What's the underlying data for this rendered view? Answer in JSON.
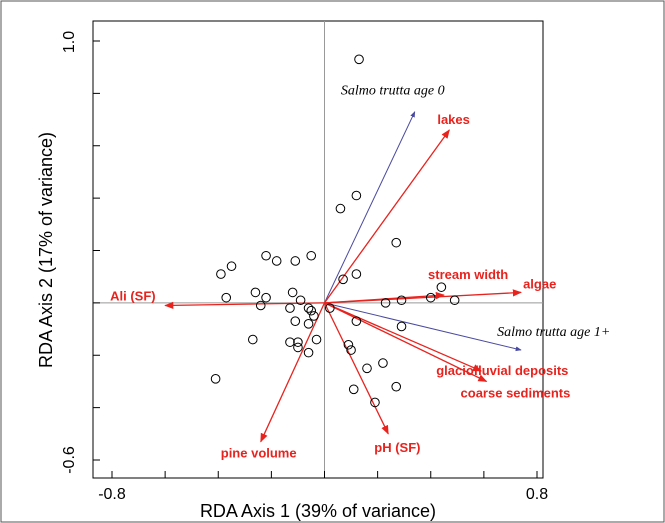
{
  "chart_data": {
    "type": "scatter",
    "title": "",
    "xlabel": "RDA Axis 1 (39% of variance)",
    "ylabel": "RDA Axis 2 (17% of variance)",
    "xlim": [
      -0.8,
      0.8
    ],
    "ylim": [
      -0.6,
      1.0
    ],
    "x_tick_labels": [
      "-0.8",
      "0.8"
    ],
    "y_tick_labels": [
      "1.0",
      "-0.6"
    ],
    "grid": false,
    "zero_lines": true,
    "colors": {
      "environmental_arrows": "#e8231e",
      "species_arrows": "#4a4aa0",
      "points": "#000000"
    },
    "points": [
      {
        "x": 0.13,
        "y": 0.93
      },
      {
        "x": -0.39,
        "y": 0.11
      },
      {
        "x": -0.35,
        "y": 0.14
      },
      {
        "x": -0.22,
        "y": 0.18
      },
      {
        "x": -0.18,
        "y": 0.16
      },
      {
        "x": -0.11,
        "y": 0.16
      },
      {
        "x": -0.05,
        "y": 0.18
      },
      {
        "x": 0.06,
        "y": 0.36
      },
      {
        "x": 0.12,
        "y": 0.41
      },
      {
        "x": 0.27,
        "y": 0.23
      },
      {
        "x": 0.12,
        "y": 0.11
      },
      {
        "x": 0.07,
        "y": 0.09
      },
      {
        "x": -0.26,
        "y": 0.04
      },
      {
        "x": -0.37,
        "y": 0.02
      },
      {
        "x": -0.22,
        "y": 0.02
      },
      {
        "x": -0.12,
        "y": 0.04
      },
      {
        "x": -0.09,
        "y": 0.01
      },
      {
        "x": -0.13,
        "y": -0.02
      },
      {
        "x": -0.24,
        "y": -0.01
      },
      {
        "x": -0.06,
        "y": -0.02
      },
      {
        "x": -0.11,
        "y": -0.07
      },
      {
        "x": -0.06,
        "y": -0.08
      },
      {
        "x": -0.04,
        "y": -0.05
      },
      {
        "x": -0.05,
        "y": -0.03
      },
      {
        "x": 0.02,
        "y": -0.02
      },
      {
        "x": 0.12,
        "y": -0.07
      },
      {
        "x": 0.23,
        "y": 0.0
      },
      {
        "x": 0.29,
        "y": 0.01
      },
      {
        "x": 0.4,
        "y": 0.02
      },
      {
        "x": 0.44,
        "y": 0.06
      },
      {
        "x": 0.49,
        "y": 0.01
      },
      {
        "x": 0.29,
        "y": -0.09
      },
      {
        "x": -0.27,
        "y": -0.14
      },
      {
        "x": -0.13,
        "y": -0.15
      },
      {
        "x": -0.1,
        "y": -0.17
      },
      {
        "x": -0.03,
        "y": -0.14
      },
      {
        "x": -0.06,
        "y": -0.19
      },
      {
        "x": -0.1,
        "y": -0.15
      },
      {
        "x": 0.09,
        "y": -0.16
      },
      {
        "x": 0.1,
        "y": -0.18
      },
      {
        "x": 0.22,
        "y": -0.23
      },
      {
        "x": 0.16,
        "y": -0.25
      },
      {
        "x": 0.27,
        "y": -0.32
      },
      {
        "x": 0.11,
        "y": -0.33
      },
      {
        "x": 0.19,
        "y": -0.38
      },
      {
        "x": -0.41,
        "y": -0.29
      }
    ],
    "environmental_arrows": [
      {
        "name": "lakes",
        "x": 0.47,
        "y": 0.66
      },
      {
        "name": "stream width",
        "x": 0.45,
        "y": 0.03
      },
      {
        "name": "algae",
        "x": 0.74,
        "y": 0.04
      },
      {
        "name": "Ali (SF)",
        "x": -0.6,
        "y": -0.01
      },
      {
        "name": "glaciofluvial deposits",
        "x": 0.59,
        "y": -0.26
      },
      {
        "name": "coarse sediments",
        "x": 0.61,
        "y": -0.3
      },
      {
        "name": "pine volume",
        "x": -0.24,
        "y": -0.53
      },
      {
        "name": "pH (SF)",
        "x": 0.24,
        "y": -0.5
      }
    ],
    "species_arrows": [
      {
        "name": "Salmo trutta age 0",
        "x": 0.34,
        "y": 0.73
      },
      {
        "name": "Salmo trutta age 1+",
        "x": 0.74,
        "y": -0.18
      }
    ]
  }
}
